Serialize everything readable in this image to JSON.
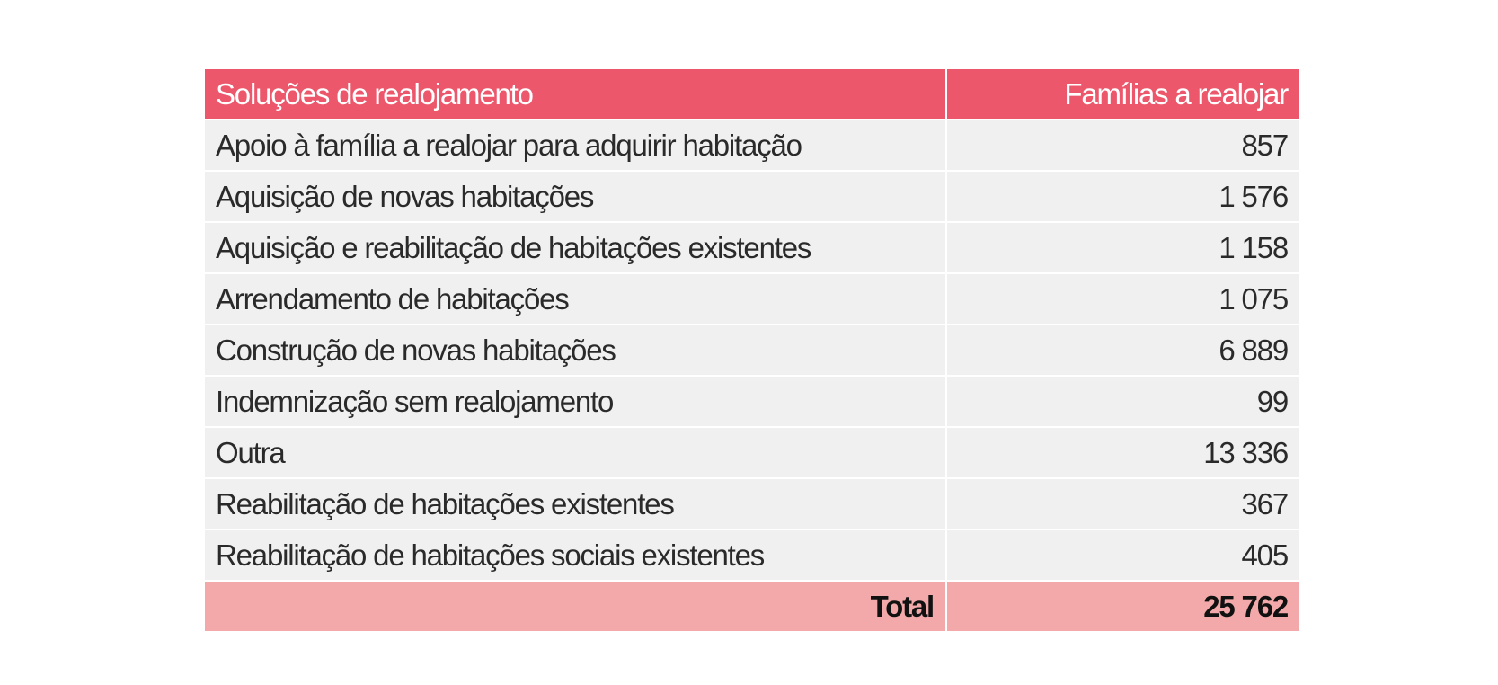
{
  "table": {
    "headers": {
      "solution": "Soluções de realojamento",
      "families": "Famílias a realojar"
    },
    "rows": [
      {
        "solution": "Apoio à família a realojar para adquirir habitação",
        "families": "857"
      },
      {
        "solution": "Aquisição de novas habitações",
        "families": "1 576"
      },
      {
        "solution": "Aquisição e reabilitação de habitações existentes",
        "families": "1 158"
      },
      {
        "solution": "Arrendamento de habitações",
        "families": "1 075"
      },
      {
        "solution": "Construção de novas habitações",
        "families": "6 889"
      },
      {
        "solution": "Indemnização sem realojamento",
        "families": "99"
      },
      {
        "solution": "Outra",
        "families": "13 336"
      },
      {
        "solution": "Reabilitação de habitações existentes",
        "families": "367"
      },
      {
        "solution": "Reabilitação de habitações sociais existentes",
        "families": "405"
      }
    ],
    "total": {
      "label": "Total",
      "value": "25 762"
    }
  },
  "colors": {
    "header_bg": "#ec576c",
    "row_bg": "#f0f0f0",
    "total_bg": "#f3a9a9"
  }
}
